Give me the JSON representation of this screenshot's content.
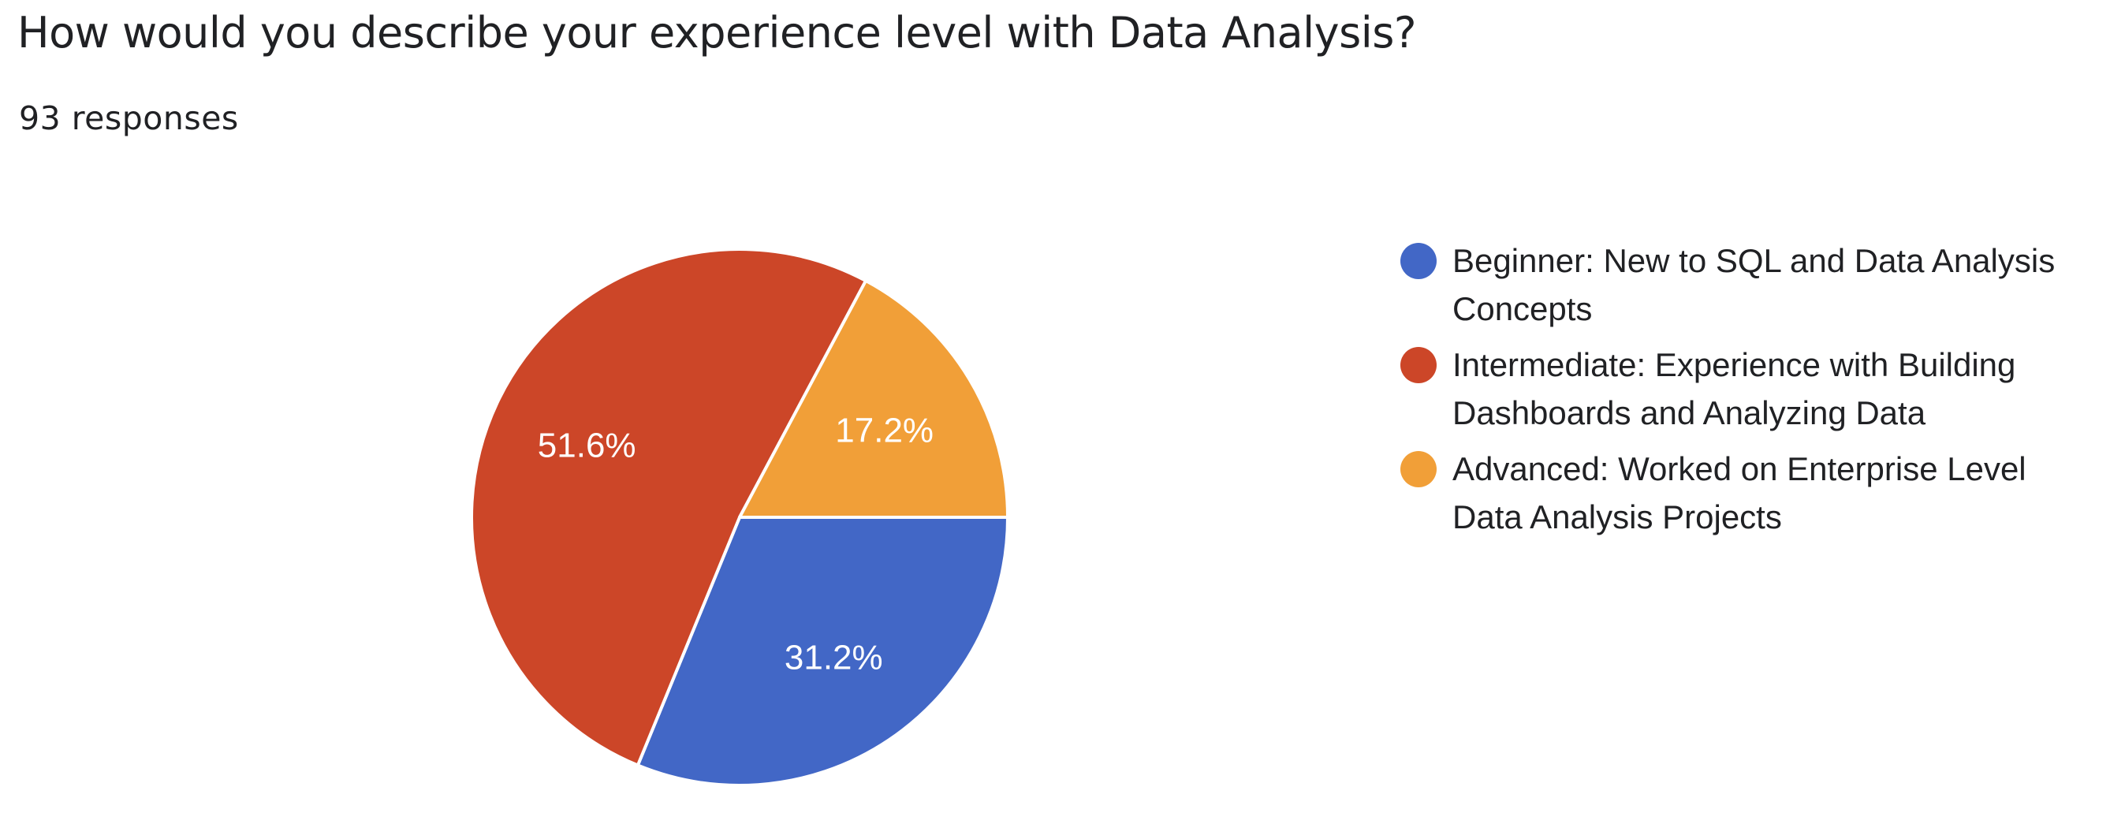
{
  "question": {
    "title": "How would you describe your experience level with Data Analysis?",
    "responses": "93 responses"
  },
  "chart_data": {
    "type": "pie",
    "title": "How would you describe your experience level with Data Analysis?",
    "total_responses": 93,
    "start_angle": "3 o'clock, clockwise",
    "legend_position": "right",
    "slices": [
      {
        "label": "Beginner: New to SQL and Data Analysis Concepts",
        "value": 31.2,
        "display": "31.2%",
        "color": "#4267c6"
      },
      {
        "label": "Intermediate: Experience with Building Dashboards and Analyzing Data",
        "value": 51.6,
        "display": "51.6%",
        "color": "#cc4628"
      },
      {
        "label": "Advanced: Worked on Enterprise Level Data Analysis Projects",
        "value": 17.2,
        "display": "17.2%",
        "color": "#f19f38"
      }
    ]
  }
}
